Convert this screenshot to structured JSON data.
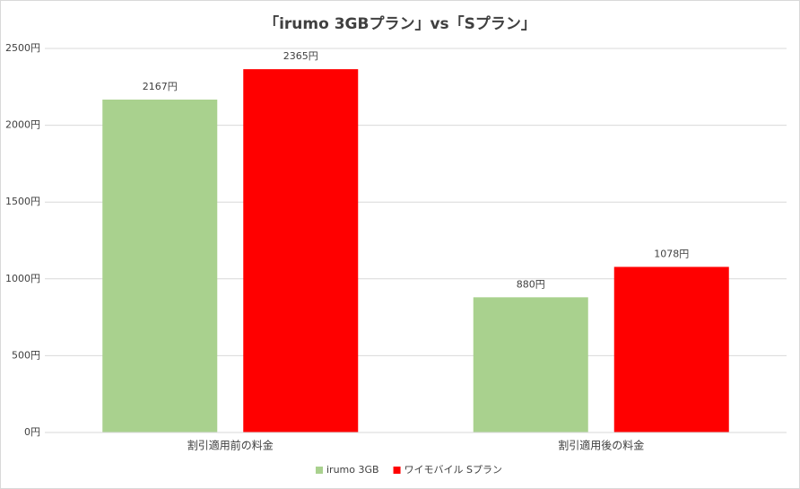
{
  "chart_data": {
    "type": "bar",
    "title": "「irumo 3GBプラン」vs「Sプラン」",
    "categories": [
      "割引適用前の料金",
      "割引適用後の料金"
    ],
    "series": [
      {
        "name": "irumo 3GB",
        "color": "#a9d18e",
        "values": [
          2167,
          880
        ],
        "value_labels": [
          "2167円",
          "880円"
        ]
      },
      {
        "name": "ワイモバイル Sプラン",
        "color": "#ff0000",
        "values": [
          2365,
          1078
        ],
        "value_labels": [
          "2365円",
          "1078円"
        ]
      }
    ],
    "ylim": [
      0,
      2500
    ],
    "yticks": [
      {
        "value": 0,
        "label": "0円"
      },
      {
        "value": 500,
        "label": "500円"
      },
      {
        "value": 1000,
        "label": "1000円"
      },
      {
        "value": 1500,
        "label": "1500円"
      },
      {
        "value": 2000,
        "label": "2000円"
      },
      {
        "value": 2500,
        "label": "2500円"
      }
    ],
    "grid": true,
    "legend": "bottom"
  }
}
